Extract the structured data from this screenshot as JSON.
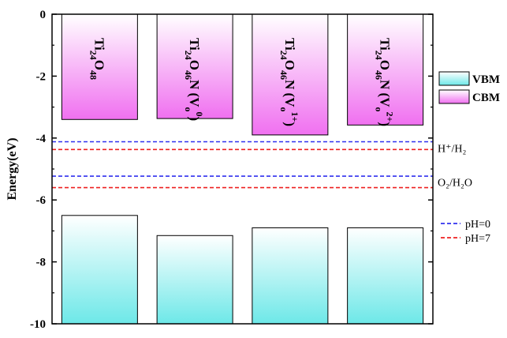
{
  "chart_data": {
    "type": "bar",
    "ylabel": "Energy(eV)",
    "ylim": [
      -10,
      0
    ],
    "yticks": [
      0,
      -2,
      -4,
      -6,
      -8,
      -10
    ],
    "categories": [
      {
        "main": "Ti",
        "sub1": "24",
        "mid": "O",
        "sub2": "48",
        "tail": "",
        "vsup": ""
      },
      {
        "main": "Ti",
        "sub1": "24",
        "mid": "O",
        "sub2": "46",
        "tail": "N (V",
        "vsub": "o",
        "vsup": "0",
        "close": ")"
      },
      {
        "main": "Ti",
        "sub1": "24",
        "mid": "O",
        "sub2": "46",
        "tail": "N (V",
        "vsub": "o",
        "vsup": "1+",
        "close": ")"
      },
      {
        "main": "Ti",
        "sub1": "24",
        "mid": "O",
        "sub2": "46",
        "tail": "N (V",
        "vsub": "o",
        "vsup": "2+",
        "close": ")"
      }
    ],
    "series": [
      {
        "name": "VBM",
        "values": [
          -6.5,
          -7.15,
          -6.9,
          -6.9
        ],
        "color_top": "#ffffff",
        "color_bottom": "#6de8e8"
      },
      {
        "name": "CBM",
        "values": [
          -3.4,
          -3.37,
          -3.9,
          -3.58
        ],
        "color_top": "#ffffff",
        "color_bottom": "#f070f0"
      }
    ],
    "reference_lines": [
      {
        "label": "H⁺/H₂",
        "ph": "pH=0",
        "value": -4.12,
        "color": "#3030ee"
      },
      {
        "label": "H⁺/H₂",
        "ph": "pH=7",
        "value": -4.37,
        "color": "#ee2020"
      },
      {
        "label": "O₂/H₂O",
        "ph": "pH=0",
        "value": -5.23,
        "color": "#3030ee"
      },
      {
        "label": "O₂/H₂O",
        "ph": "pH=7",
        "value": -5.6,
        "color": "#ee2020"
      }
    ],
    "side_labels": {
      "h": "H⁺/H₂",
      "o": "O₂/H₂O"
    },
    "legend": {
      "boxes": [
        {
          "label": "VBM"
        },
        {
          "label": "CBM"
        }
      ],
      "lines": [
        {
          "label": "pH=0",
          "color": "#3030ee"
        },
        {
          "label": "pH=7",
          "color": "#ee2020"
        }
      ]
    }
  }
}
